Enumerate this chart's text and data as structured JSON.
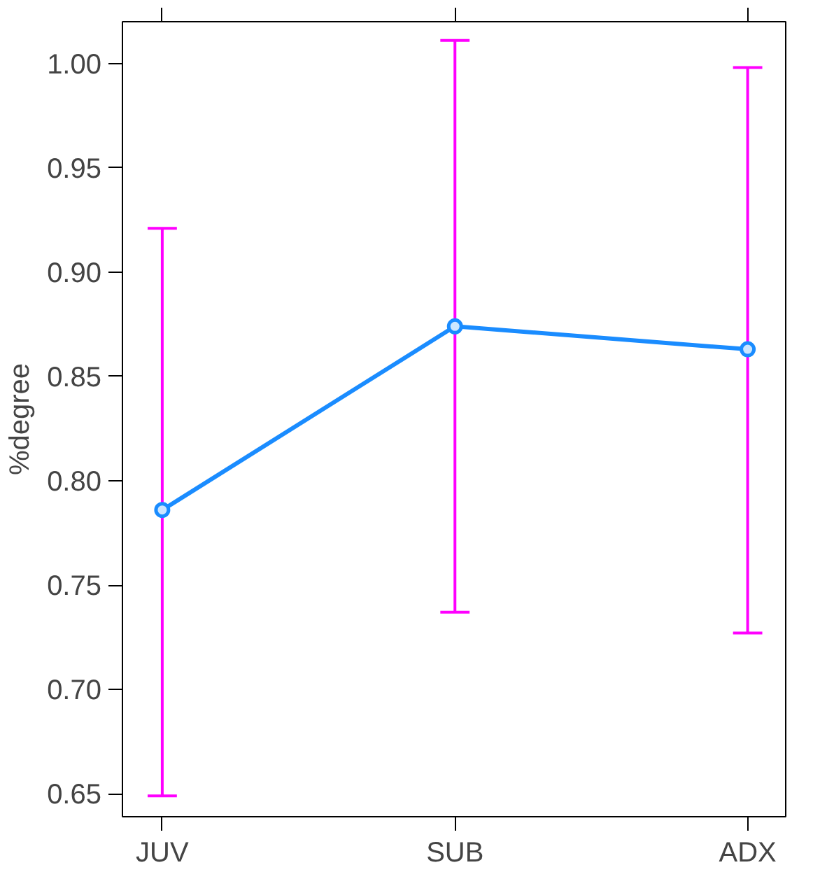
{
  "chart_data": {
    "type": "line",
    "ylabel": "%degree",
    "categories": [
      "JUV",
      "SUB",
      "ADX"
    ],
    "series": [
      {
        "color": "#1a8cff",
        "values": [
          0.786,
          0.874,
          0.863
        ],
        "errors": [
          [
            0.649,
            0.921
          ],
          [
            0.737,
            1.011
          ],
          [
            0.727,
            0.998
          ]
        ]
      }
    ],
    "ylim": [
      0.639,
      1.02
    ],
    "yticks": [
      0.65,
      {
        "value": 0.7,
        "label": "0.70"
      },
      0.75,
      {
        "value": 0.8,
        "label": "0.80"
      },
      0.85,
      {
        "value": 0.9,
        "label": "0.90"
      },
      0.95,
      {
        "value": 1.0,
        "label": "1.00"
      }
    ],
    "marker": "circle",
    "line_style": "solid"
  }
}
